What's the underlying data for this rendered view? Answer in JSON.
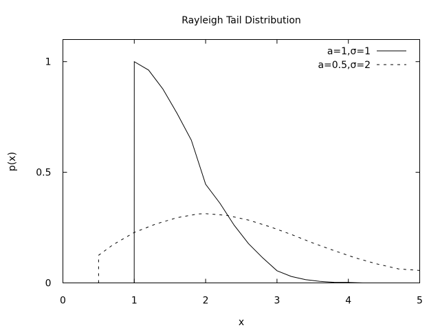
{
  "chart_data": {
    "type": "line",
    "title": "Rayleigh Tail Distribution",
    "xlabel": "x",
    "ylabel": "p(x)",
    "xlim": [
      0,
      5
    ],
    "ylim": [
      0,
      1.1
    ],
    "x_ticks": [
      "0",
      "1",
      "2",
      "3",
      "4",
      "5"
    ],
    "y_ticks": [
      "0",
      "0.5",
      "1"
    ],
    "grid": false,
    "legend_position": "top-right",
    "series": [
      {
        "name": "a=1,σ=1",
        "style": "solid",
        "x": [
          0.0,
          0.999,
          1.0,
          1.2,
          1.4,
          1.6,
          1.8,
          2.0,
          2.2,
          2.4,
          2.6,
          2.8,
          3.0,
          3.2,
          3.4,
          3.6,
          3.8,
          4.0,
          4.2
        ],
        "y": [
          0.0,
          0.0,
          1.0,
          0.962,
          0.877,
          0.766,
          0.645,
          0.446,
          0.36,
          0.2607,
          0.1776,
          0.1134,
          0.0549,
          0.02934,
          0.01458,
          0.00672,
          0.00287,
          0.00221,
          3e-05
        ]
      },
      {
        "name": "a=0.5,σ=2",
        "style": "dashed",
        "x": [
          0.5,
          0.5,
          0.7,
          1.0,
          1.3,
          1.6,
          1.9,
          2.0,
          2.3,
          2.6,
          2.9,
          3.2,
          3.5,
          3.8,
          4.1,
          4.4,
          4.7,
          5.0
        ],
        "y": [
          0.0,
          0.125,
          0.172,
          0.228,
          0.266,
          0.295,
          0.312,
          0.313,
          0.305,
          0.284,
          0.254,
          0.219,
          0.181,
          0.146,
          0.113,
          0.0859,
          0.0633,
          0.0563
        ]
      }
    ]
  }
}
